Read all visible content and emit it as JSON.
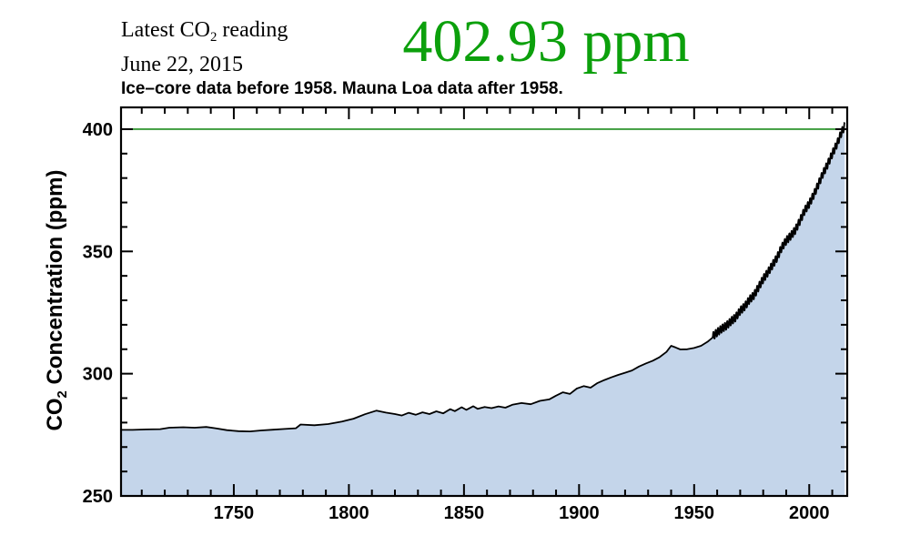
{
  "header": {
    "latest_line1_pre": "Latest CO",
    "latest_line1_sub": "2",
    "latest_line1_post": " reading",
    "latest_line2": "June 22, 2015",
    "reading_value": "402.93 ppm",
    "reading_color": "#0ca00c"
  },
  "chart_data": {
    "type": "area",
    "title": "Ice–core data before 1958. Mauna Loa data after 1958.",
    "xlabel": "",
    "ylabel": "CO2 Concentration (ppm)",
    "ylabel_pre": "CO",
    "ylabel_sub": "2",
    "ylabel_post": " Concentration (ppm)",
    "xlim": [
      1701,
      2016.5
    ],
    "ylim": [
      250,
      408.9
    ],
    "xticks_major": [
      1750,
      1800,
      1850,
      1900,
      1950,
      2000
    ],
    "xticks_minor_step": 10,
    "yticks_major": [
      250,
      300,
      350,
      400
    ],
    "yticks_minor_step": 10,
    "grid": false,
    "frame": true,
    "fill_color": "#c4d5ea",
    "line_color": "#000000",
    "axis_color": "#000000",
    "reference_line": {
      "value": 400,
      "color": "#1c8c1c"
    },
    "series": {
      "ice_core": {
        "points": [
          [
            1701,
            277.0
          ],
          [
            1706,
            277.0
          ],
          [
            1712,
            277.2
          ],
          [
            1718,
            277.3
          ],
          [
            1722,
            277.9
          ],
          [
            1728,
            278.1
          ],
          [
            1733,
            277.9
          ],
          [
            1738,
            278.2
          ],
          [
            1742,
            277.7
          ],
          [
            1747,
            276.9
          ],
          [
            1752,
            276.5
          ],
          [
            1757,
            276.4
          ],
          [
            1762,
            276.8
          ],
          [
            1767,
            277.1
          ],
          [
            1772,
            277.4
          ],
          [
            1777,
            277.7
          ],
          [
            1779,
            279.2
          ],
          [
            1785,
            278.9
          ],
          [
            1791,
            279.4
          ],
          [
            1797,
            280.4
          ],
          [
            1802,
            281.6
          ],
          [
            1807,
            283.4
          ],
          [
            1812,
            284.9
          ],
          [
            1816,
            284.1
          ],
          [
            1820,
            283.5
          ],
          [
            1823,
            282.9
          ],
          [
            1826,
            284.0
          ],
          [
            1829,
            283.2
          ],
          [
            1832,
            284.2
          ],
          [
            1835,
            283.5
          ],
          [
            1838,
            284.6
          ],
          [
            1841,
            283.8
          ],
          [
            1844,
            285.5
          ],
          [
            1846,
            284.7
          ],
          [
            1849,
            286.3
          ],
          [
            1851,
            285.2
          ],
          [
            1854,
            286.7
          ],
          [
            1856,
            285.6
          ],
          [
            1859,
            286.4
          ],
          [
            1862,
            285.9
          ],
          [
            1865,
            286.6
          ],
          [
            1868,
            286.1
          ],
          [
            1871,
            287.3
          ],
          [
            1875,
            288.0
          ],
          [
            1879,
            287.5
          ],
          [
            1883,
            288.9
          ],
          [
            1887,
            289.5
          ],
          [
            1890,
            291.0
          ],
          [
            1893,
            292.4
          ],
          [
            1896,
            291.7
          ],
          [
            1899,
            293.9
          ],
          [
            1902,
            294.9
          ],
          [
            1905,
            294.3
          ],
          [
            1908,
            296.2
          ],
          [
            1911,
            297.4
          ],
          [
            1914,
            298.5
          ],
          [
            1917,
            299.5
          ],
          [
            1920,
            300.4
          ],
          [
            1923,
            301.3
          ],
          [
            1926,
            302.9
          ],
          [
            1929,
            304.2
          ],
          [
            1932,
            305.3
          ],
          [
            1935,
            306.8
          ],
          [
            1938,
            308.9
          ],
          [
            1940,
            311.4
          ],
          [
            1942,
            310.7
          ],
          [
            1944,
            309.9
          ],
          [
            1947,
            310.0
          ],
          [
            1950,
            310.5
          ],
          [
            1953,
            311.4
          ],
          [
            1956,
            313.2
          ],
          [
            1958,
            314.7
          ]
        ]
      },
      "mauna_loa_annual": {
        "points": [
          [
            1958,
            315.2
          ],
          [
            1960,
            316.9
          ],
          [
            1962,
            318.4
          ],
          [
            1964,
            319.6
          ],
          [
            1966,
            321.4
          ],
          [
            1968,
            323.0
          ],
          [
            1970,
            325.7
          ],
          [
            1972,
            327.5
          ],
          [
            1974,
            330.2
          ],
          [
            1976,
            332.1
          ],
          [
            1978,
            335.4
          ],
          [
            1980,
            338.7
          ],
          [
            1982,
            341.4
          ],
          [
            1984,
            344.4
          ],
          [
            1986,
            347.4
          ],
          [
            1988,
            351.5
          ],
          [
            1990,
            354.4
          ],
          [
            1992,
            356.4
          ],
          [
            1994,
            358.8
          ],
          [
            1996,
            362.6
          ],
          [
            1998,
            366.7
          ],
          [
            2000,
            369.5
          ],
          [
            2002,
            373.2
          ],
          [
            2004,
            377.5
          ],
          [
            2006,
            381.9
          ],
          [
            2008,
            385.6
          ],
          [
            2010,
            389.9
          ],
          [
            2012,
            393.8
          ],
          [
            2014,
            398.6
          ],
          [
            2015.45,
            401.3
          ]
        ]
      }
    },
    "seasonal_cycle": {
      "start_year": 1958,
      "end_year": 2015.45,
      "amplitude_ppm": 1.6,
      "samples_per_year": 12
    }
  }
}
